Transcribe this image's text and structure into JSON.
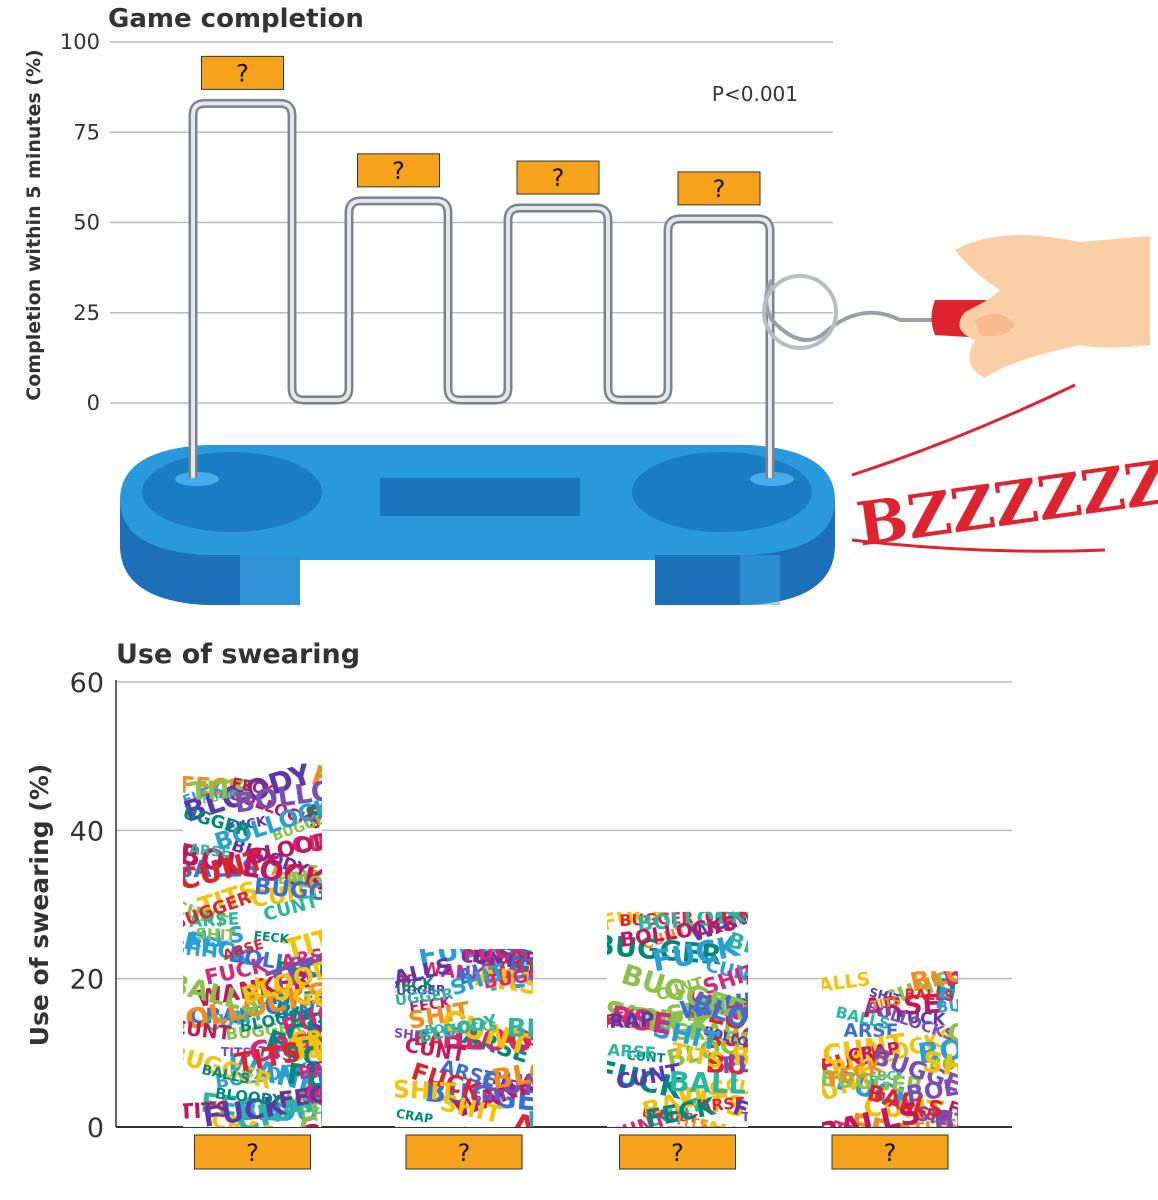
{
  "chart_data": [
    {
      "type": "bar",
      "title": "Game completion",
      "ylabel": "Completion within 5 minutes (%)",
      "ylim": [
        0,
        100
      ],
      "yticks": [
        0,
        25,
        50,
        75,
        100
      ],
      "categories": [
        "?",
        "?",
        "?",
        "?"
      ],
      "values": [
        83,
        56,
        54,
        51
      ],
      "annotation": "P<0.001",
      "grid": true
    },
    {
      "type": "bar",
      "title": "Use of swearing",
      "ylabel": "Use of swearing (%)",
      "ylim": [
        0,
        60
      ],
      "yticks": [
        0,
        20,
        40,
        60
      ],
      "categories": [
        "?",
        "?",
        "?",
        "?"
      ],
      "values": [
        49,
        24,
        29,
        21
      ],
      "grid": true
    }
  ],
  "illustration": {
    "buzz_text": "BZZZZZZ",
    "swear_words": [
      "FUCK",
      "SHIT",
      "BALLS",
      "WANKER",
      "BOLLOCKS",
      "CRAP",
      "ARSE",
      "FECK",
      "BLOODY",
      "TITS",
      "CUNT",
      "BUGGER"
    ]
  },
  "colors": {
    "accent_label": "#f7a21b",
    "base_blue": "#1c8fd6",
    "buzz_red": "#e0242f",
    "wire": "#8a8f98",
    "swear_palette": [
      "#e0242f",
      "#2a9fd6",
      "#f28c1e",
      "#7a4fb5",
      "#2bb5a5",
      "#d6287a",
      "#3b6fd4",
      "#8bc34a",
      "#f4c20d",
      "#c2185b",
      "#00897b",
      "#5e35b1"
    ]
  }
}
